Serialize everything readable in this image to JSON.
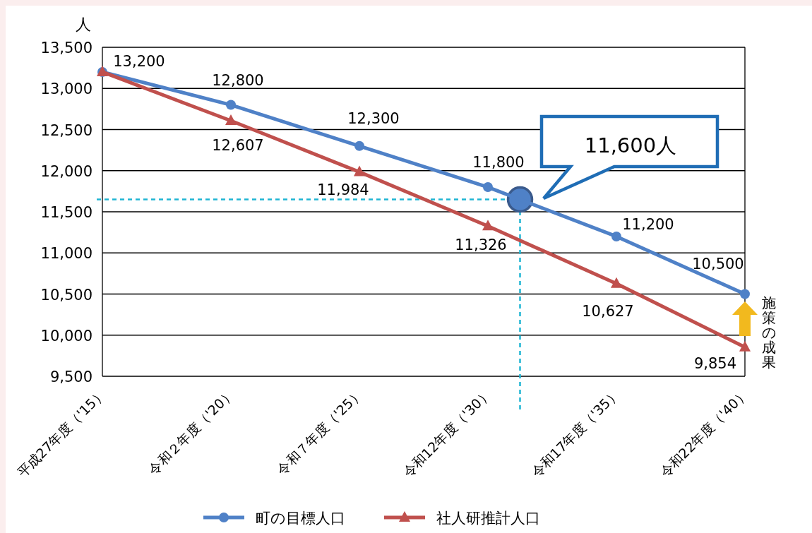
{
  "chart_data": {
    "type": "line",
    "ylabel": "人",
    "categories": [
      "平成27年度（'15）",
      "令和２年度（'20）",
      "令和７年度（'25）",
      "令和12年度（'30）",
      "令和17年度（'35）",
      "令和22年度（'40）"
    ],
    "ylim": [
      9500,
      13500
    ],
    "yticks": [
      {
        "value": 9500,
        "label": "9,500"
      },
      {
        "value": 10000,
        "label": "10,000"
      },
      {
        "value": 10500,
        "label": "10,500"
      },
      {
        "value": 11000,
        "label": "11,000"
      },
      {
        "value": 11500,
        "label": "11,500"
      },
      {
        "value": 12000,
        "label": "12,000"
      },
      {
        "value": 12500,
        "label": "12,500"
      },
      {
        "value": 13000,
        "label": "13,000"
      },
      {
        "value": 13500,
        "label": "13,500"
      }
    ],
    "grid": "y",
    "legend": "bottom",
    "series": [
      {
        "name": "町の目標人口",
        "color": "#4f81c7",
        "marker": "circle",
        "line_style": "solid",
        "values": [
          13200,
          12800,
          12300,
          11800,
          11200,
          10500
        ],
        "value_labels": [
          "13,200",
          "12,800",
          "12,300",
          "11,800",
          "11,200",
          "10,500"
        ]
      },
      {
        "name": "社人研推計人口",
        "color": "#c0504d",
        "marker": "triangle",
        "line_style": "solid",
        "values": [
          13200,
          12607,
          11984,
          11326,
          10627,
          9854
        ],
        "value_labels": [
          null,
          "12,607",
          "11,984",
          "11,326",
          "10,627",
          "9,854"
        ]
      }
    ],
    "ref_lines": [
      {
        "axis": "y",
        "value": 11650,
        "color": "#1fb5d3",
        "line_style": "dashed"
      }
    ],
    "annotations": [
      "11,600人",
      "施策の成果"
    ]
  }
}
